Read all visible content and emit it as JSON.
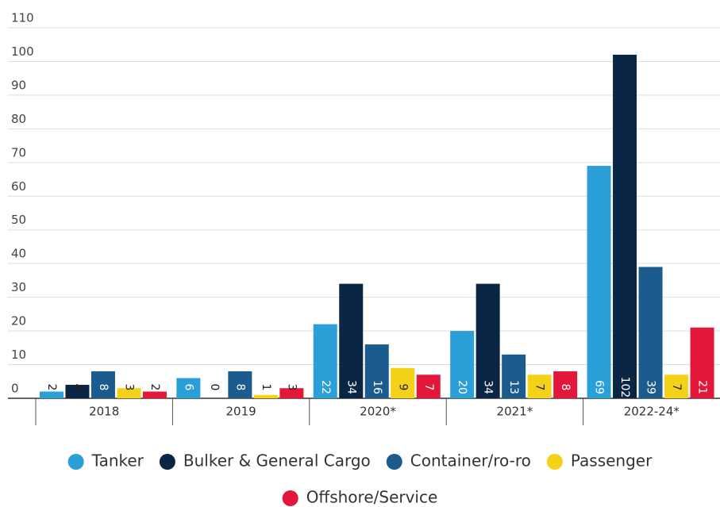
{
  "chart_data": {
    "type": "bar",
    "categories": [
      "2018",
      "2019",
      "2020*",
      "2021*",
      "2022-24*"
    ],
    "series": [
      {
        "name": "Tanker",
        "color": "#2a9fd8",
        "values": [
          2,
          6,
          22,
          20,
          69
        ]
      },
      {
        "name": "Bulker & General Cargo",
        "color": "#0b2545",
        "values": [
          4,
          0,
          34,
          34,
          102
        ]
      },
      {
        "name": "Container/ro-ro",
        "color": "#1b5b8e",
        "values": [
          8,
          8,
          16,
          13,
          39
        ]
      },
      {
        "name": "Passenger",
        "color": "#f5d21a",
        "values": [
          3,
          1,
          9,
          7,
          7
        ]
      },
      {
        "name": "Offshore/Service",
        "color": "#e2173a",
        "values": [
          2,
          3,
          7,
          8,
          21
        ]
      }
    ],
    "ylim": [
      0,
      110
    ],
    "yticks": [
      0,
      10,
      20,
      30,
      40,
      50,
      60,
      70,
      80,
      90,
      100,
      110
    ],
    "grid": true,
    "legend": "bottom"
  }
}
